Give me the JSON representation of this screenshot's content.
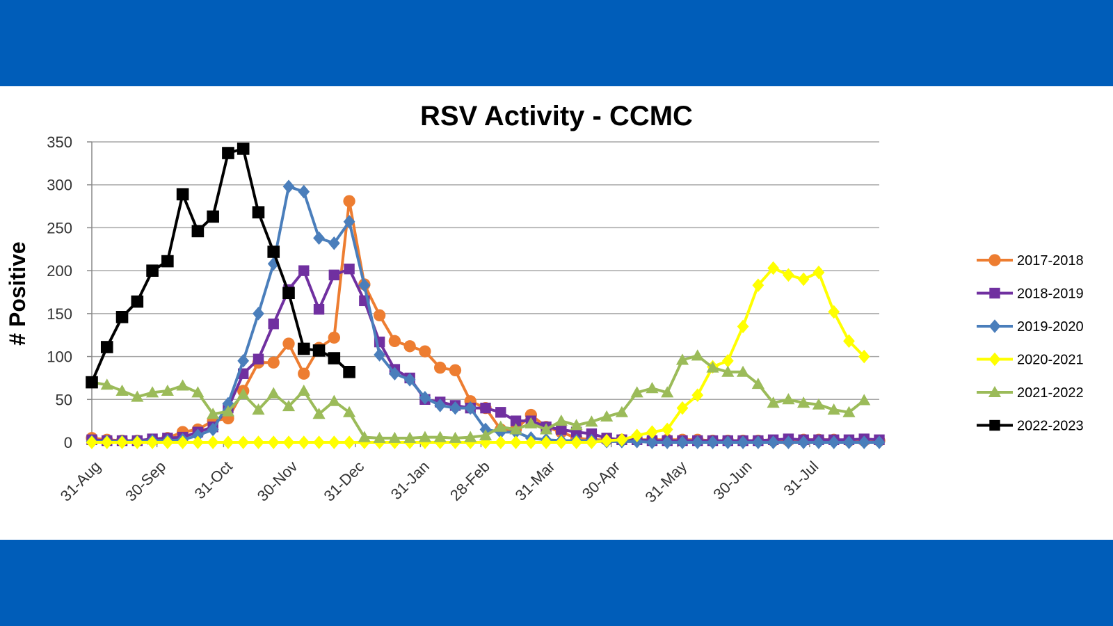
{
  "chart_data": {
    "type": "line",
    "title": "RSV Activity - CCMC",
    "xlabel": "",
    "ylabel": "# Positive",
    "ylim": [
      0,
      350
    ],
    "yticks": [
      0,
      50,
      100,
      150,
      200,
      250,
      300,
      350
    ],
    "xticks": [
      "31-Aug",
      "30-Sep",
      "31-Oct",
      "30-Nov",
      "31-Dec",
      "31-Jan",
      "28-Feb",
      "31-Mar",
      "30-Apr",
      "31-May",
      "30-Jun",
      "31-Jul"
    ],
    "xtick_weeks": [
      0,
      4.3,
      8.7,
      13,
      17.4,
      21.7,
      25.7,
      30,
      34.3,
      38.7,
      43,
      47.4
    ],
    "week_count": 52,
    "grid": true,
    "legend_position": "right",
    "series": [
      {
        "name": "2017-2018",
        "color": "#ed7d31",
        "marker": "circle",
        "values": [
          5,
          3,
          2,
          2,
          3,
          5,
          12,
          15,
          25,
          28,
          60,
          93,
          93,
          115,
          80,
          110,
          122,
          281,
          184,
          148,
          118,
          112,
          106,
          87,
          84,
          48,
          40,
          15,
          15,
          32,
          18,
          12,
          5,
          3,
          3,
          3,
          3,
          3,
          3,
          3,
          3,
          2,
          2,
          2,
          2,
          2,
          2,
          3,
          3,
          3,
          2,
          2,
          2
        ]
      },
      {
        "name": "2018-2019",
        "color": "#7030a0",
        "marker": "square",
        "values": [
          3,
          2,
          2,
          2,
          4,
          5,
          6,
          12,
          18,
          40,
          80,
          97,
          138,
          178,
          200,
          155,
          195,
          202,
          165,
          117,
          85,
          75,
          50,
          47,
          43,
          40,
          40,
          35,
          25,
          25,
          18,
          15,
          12,
          10,
          5,
          3,
          3,
          2,
          2,
          2,
          2,
          2,
          2,
          2,
          2,
          3,
          4,
          3,
          3,
          3,
          3,
          4,
          3
        ]
      },
      {
        "name": "2019-2020",
        "color": "#4a7ebb",
        "marker": "diamond",
        "values": [
          1,
          1,
          1,
          1,
          2,
          2,
          3,
          8,
          15,
          45,
          95,
          150,
          208,
          298,
          292,
          238,
          232,
          257,
          183,
          102,
          80,
          73,
          52,
          43,
          40,
          40,
          15,
          12,
          12,
          5,
          3,
          2,
          2,
          2,
          1,
          1,
          1,
          0,
          0,
          0,
          0,
          0,
          0,
          0,
          0,
          0,
          0,
          0,
          0,
          0,
          0,
          0,
          0
        ]
      },
      {
        "name": "2020-2021",
        "color": "#ffff00",
        "marker": "diamond",
        "values": [
          0,
          0,
          0,
          0,
          0,
          0,
          0,
          0,
          0,
          0,
          0,
          0,
          0,
          0,
          0,
          0,
          0,
          0,
          0,
          0,
          0,
          0,
          0,
          0,
          0,
          0,
          0,
          0,
          0,
          0,
          0,
          0,
          0,
          0,
          2,
          3,
          8,
          12,
          15,
          40,
          55,
          88,
          95,
          135,
          183,
          203,
          195,
          190,
          198,
          152,
          118,
          100
        ]
      },
      {
        "name": "2021-2022",
        "color": "#9bbb59",
        "marker": "triangle",
        "values": [
          70,
          67,
          60,
          53,
          58,
          60,
          66,
          58,
          33,
          36,
          56,
          38,
          57,
          42,
          60,
          33,
          48,
          35,
          6,
          5,
          5,
          5,
          6,
          6,
          5,
          6,
          8,
          18,
          15,
          22,
          15,
          25,
          20,
          24,
          30,
          35,
          58,
          63,
          58,
          96,
          101,
          87,
          82,
          82,
          68,
          46,
          50,
          46,
          44,
          38,
          35,
          49
        ]
      },
      {
        "name": "2022-2023",
        "color": "#000000",
        "marker": "square",
        "values": [
          70,
          111,
          146,
          164,
          200,
          211,
          289,
          246,
          263,
          337,
          342,
          268,
          222,
          174,
          109,
          107,
          98,
          82
        ]
      }
    ]
  }
}
